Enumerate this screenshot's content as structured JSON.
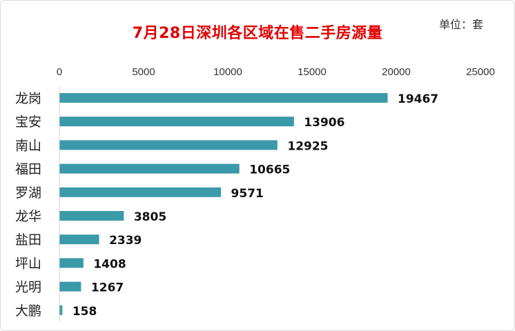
{
  "title": "7月28日深圳各区域在售二手房源量",
  "unit_label": "单位：套",
  "colors": {
    "bar": "#3a9aa9",
    "title": "#e00000",
    "axis": "#d0d0d0"
  },
  "chart_data": {
    "type": "bar",
    "orientation": "horizontal",
    "title": "7月28日深圳各区域在售二手房源量",
    "xlabel": "",
    "ylabel": "",
    "xlim": [
      0,
      25000
    ],
    "ticks": [
      "0",
      "5000",
      "10000",
      "15000",
      "20000",
      "25000"
    ],
    "tick_values": [
      0,
      5000,
      10000,
      15000,
      20000,
      25000
    ],
    "axis_position": "top",
    "grid": false,
    "categories": [
      "龙岗",
      "宝安",
      "南山",
      "福田",
      "罗湖",
      "龙华",
      "盐田",
      "坪山",
      "光明",
      "大鹏"
    ],
    "values": [
      19467,
      13906,
      12925,
      10665,
      9571,
      3805,
      2339,
      1408,
      1267,
      158
    ],
    "data_labels": [
      "19467",
      "13906",
      "12925",
      "10665",
      "9571",
      "3805",
      "2339",
      "1408",
      "1267",
      "158"
    ]
  }
}
